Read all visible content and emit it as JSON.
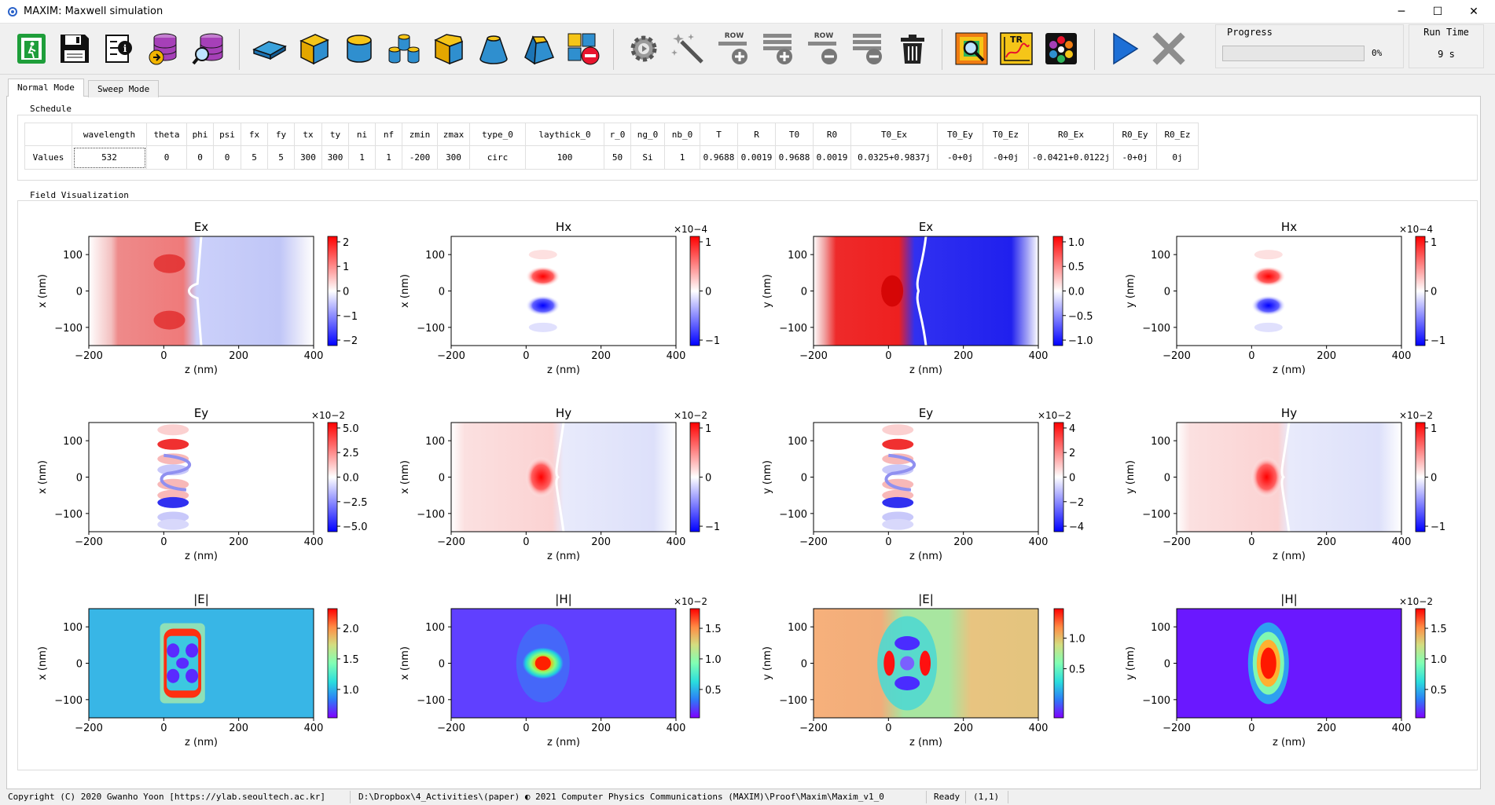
{
  "window": {
    "title": "MAXIM: Maxwell simulation",
    "minimize": "─",
    "maximize": "☐",
    "close": "✕"
  },
  "toolbar": {
    "items": [
      {
        "id": "exit",
        "icon": "exit-icon"
      },
      {
        "id": "save",
        "icon": "save-icon"
      },
      {
        "id": "info",
        "icon": "info-document-icon"
      },
      {
        "id": "db-load",
        "icon": "database-load-icon"
      },
      {
        "id": "db-search",
        "icon": "database-search-icon"
      },
      {
        "id": "plate",
        "icon": "slab-shape-icon"
      },
      {
        "id": "box",
        "icon": "box-shape-icon"
      },
      {
        "id": "cylinder",
        "icon": "cylinder-shape-icon"
      },
      {
        "id": "multi-cylinder",
        "icon": "multi-cylinder-shape-icon"
      },
      {
        "id": "pentagon",
        "icon": "pentagon-prism-icon"
      },
      {
        "id": "cone",
        "icon": "truncated-cone-icon"
      },
      {
        "id": "pyramid",
        "icon": "truncated-pyramid-icon"
      },
      {
        "id": "delete-shape",
        "icon": "remove-shape-icon"
      },
      {
        "id": "settings",
        "icon": "gear-icon"
      },
      {
        "id": "wand",
        "icon": "magic-wand-icon"
      },
      {
        "id": "row-add",
        "icon": "row-add-icon",
        "label": "ROW"
      },
      {
        "id": "rows-add",
        "icon": "rows-add-icon"
      },
      {
        "id": "row-remove",
        "icon": "row-remove-icon",
        "label": "ROW"
      },
      {
        "id": "rows-remove",
        "icon": "rows-remove-icon"
      },
      {
        "id": "trash",
        "icon": "trash-icon"
      },
      {
        "id": "field-view",
        "icon": "field-zoom-icon"
      },
      {
        "id": "tr-plot",
        "icon": "tr-chart-icon",
        "label": "TR"
      },
      {
        "id": "palette",
        "icon": "color-palette-icon"
      },
      {
        "id": "run",
        "icon": "play-icon"
      },
      {
        "id": "stop",
        "icon": "stop-x-icon"
      }
    ]
  },
  "progress": {
    "title": "Progress",
    "value": 0,
    "percent_text": "0%"
  },
  "runtime": {
    "title": "Run Time",
    "value": "9 s"
  },
  "tabs": [
    {
      "label": "Normal Mode",
      "active": true
    },
    {
      "label": "Sweep Mode",
      "active": false
    }
  ],
  "schedule": {
    "title": "Schedule",
    "row_label": "Values",
    "columns": [
      "wavelength",
      "theta",
      "phi",
      "psi",
      "fx",
      "fy",
      "tx",
      "ty",
      "ni",
      "nf",
      "zmin",
      "zmax",
      "type_0",
      "laythick_0",
      "r_0",
      "ng_0",
      "nb_0",
      "T",
      "R",
      "T0",
      "R0",
      "T0_Ex",
      "T0_Ey",
      "T0_Ez",
      "R0_Ex",
      "R0_Ey",
      "R0_Ez"
    ],
    "values": [
      "532",
      "0",
      "0",
      "0",
      "5",
      "5",
      "300",
      "300",
      "1",
      "1",
      "-200",
      "300",
      "circ",
      "100",
      "50",
      "Si",
      "1",
      "0.9688",
      "0.0019",
      "0.9688",
      "0.0019",
      "0.0325+0.9837j",
      "-0+0j",
      "-0+0j",
      "-0.0421+0.0122j",
      "-0+0j",
      "0j"
    ]
  },
  "field": {
    "title": "Field Visualization",
    "plots": [
      {
        "title": "Ex",
        "ylabel": "x (nm)",
        "xlabel": "z (nm)",
        "exp": "",
        "cmap": "bwr",
        "cticks": [
          "2",
          "1",
          "0",
          "−1",
          "−2"
        ],
        "pattern": "ex1"
      },
      {
        "title": "Hx",
        "ylabel": "x (nm)",
        "xlabel": "z (nm)",
        "exp": "×10−4",
        "cmap": "bwr",
        "cticks": [
          "1",
          "0",
          "−1"
        ],
        "pattern": "hx"
      },
      {
        "title": "Ex",
        "ylabel": "y (nm)",
        "xlabel": "z (nm)",
        "exp": "",
        "cmap": "bwr",
        "cticks": [
          "1.0",
          "0.5",
          "0.0",
          "−0.5",
          "−1.0"
        ],
        "pattern": "ex2"
      },
      {
        "title": "Hx",
        "ylabel": "y (nm)",
        "xlabel": "z (nm)",
        "exp": "×10−4",
        "cmap": "bwr",
        "cticks": [
          "1",
          "0",
          "−1"
        ],
        "pattern": "hx"
      },
      {
        "title": "Ey",
        "ylabel": "x (nm)",
        "xlabel": "z (nm)",
        "exp": "×10−2",
        "cmap": "bwr",
        "cticks": [
          "5.0",
          "2.5",
          "0.0",
          "−2.5",
          "−5.0"
        ],
        "pattern": "ey"
      },
      {
        "title": "Hy",
        "ylabel": "x (nm)",
        "xlabel": "z (nm)",
        "exp": "×10−2",
        "cmap": "bwr",
        "cticks": [
          "1",
          "0",
          "−1"
        ],
        "pattern": "hy"
      },
      {
        "title": "Ey",
        "ylabel": "y (nm)",
        "xlabel": "z (nm)",
        "exp": "×10−2",
        "cmap": "bwr",
        "cticks": [
          "4",
          "2",
          "0",
          "−2",
          "−4"
        ],
        "pattern": "ey"
      },
      {
        "title": "Hy",
        "ylabel": "y (nm)",
        "xlabel": "z (nm)",
        "exp": "×10−2",
        "cmap": "bwr",
        "cticks": [
          "1",
          "0",
          "−1"
        ],
        "pattern": "hy"
      },
      {
        "title": "|E|",
        "ylabel": "x (nm)",
        "xlabel": "z (nm)",
        "exp": "",
        "cmap": "rainbow",
        "cticks": [
          "2.0",
          "1.5",
          "1.0"
        ],
        "pattern": "e1"
      },
      {
        "title": "|H|",
        "ylabel": "x (nm)",
        "xlabel": "z (nm)",
        "exp": "×10−2",
        "cmap": "rainbow",
        "cticks": [
          "1.5",
          "1.0",
          "0.5"
        ],
        "pattern": "h1"
      },
      {
        "title": "|E|",
        "ylabel": "y (nm)",
        "xlabel": "z (nm)",
        "exp": "",
        "cmap": "rainbow",
        "cticks": [
          "1.0",
          "0.5"
        ],
        "pattern": "e2"
      },
      {
        "title": "|H|",
        "ylabel": "y (nm)",
        "xlabel": "z (nm)",
        "exp": "×10−2",
        "cmap": "rainbow",
        "cticks": [
          "1.5",
          "1.0",
          "0.5"
        ],
        "pattern": "h2"
      }
    ],
    "xticks": [
      "−200",
      "0",
      "200",
      "400"
    ],
    "yticks": [
      "100",
      "0",
      "−100"
    ]
  },
  "status": {
    "copyright": "Copyright (C) 2020 Gwanho Yoon [https://ylab.seoultech.ac.kr]",
    "path": "D:\\Dropbox\\4_Activities\\(paper) ◐ 2021 Computer Physics Communications (MAXIM)\\Proof\\Maxim\\Maxim_v1_0",
    "state": "Ready",
    "cell": "(1,1)"
  }
}
